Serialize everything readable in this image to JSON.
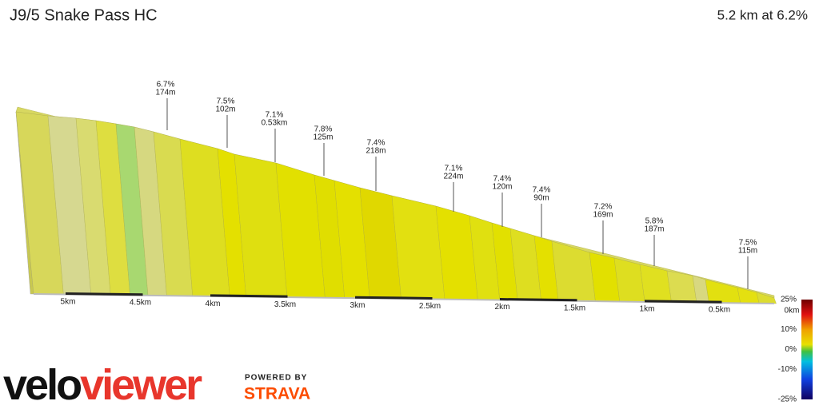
{
  "chart_data": {
    "type": "profile",
    "title": "J9/5 Snake Pass HC",
    "subtitle": "5.2 km at 6.2%",
    "annotations": [
      {
        "grade": "6.7%",
        "length": "174m"
      },
      {
        "grade": "7.5%",
        "length": "102m"
      },
      {
        "grade": "7.1%",
        "length": "0.53km"
      },
      {
        "grade": "7.8%",
        "length": "125m"
      },
      {
        "grade": "7.4%",
        "length": "218m"
      },
      {
        "grade": "7.1%",
        "length": "224m"
      },
      {
        "grade": "7.4%",
        "length": "120m"
      },
      {
        "grade": "7.4%",
        "length": "90m"
      },
      {
        "grade": "7.2%",
        "length": "169m"
      },
      {
        "grade": "5.8%",
        "length": "187m"
      },
      {
        "grade": "7.5%",
        "length": "115m"
      }
    ],
    "xlim": [
      5.2,
      0
    ],
    "xticks": [
      {
        "value": 5,
        "label": "5km"
      },
      {
        "value": 4.5,
        "label": "4.5km"
      },
      {
        "value": 4,
        "label": "4km"
      },
      {
        "value": 3.5,
        "label": "3.5km"
      },
      {
        "value": 3,
        "label": "3km"
      },
      {
        "value": 2.5,
        "label": "2.5km"
      },
      {
        "value": 2,
        "label": "2km"
      },
      {
        "value": 1.5,
        "label": "1.5km"
      },
      {
        "value": 1,
        "label": "1km"
      },
      {
        "value": 0.5,
        "label": "0.5km"
      },
      {
        "value": 0,
        "label": "0km"
      }
    ],
    "colorbar": {
      "lim": [
        -25,
        25
      ],
      "ticks": [
        {
          "value": 25,
          "label": "25%"
        },
        {
          "value": 10,
          "label": "10%"
        },
        {
          "value": 0,
          "label": "0%"
        },
        {
          "value": -10,
          "label": "-10%"
        },
        {
          "value": -25,
          "label": "-25%"
        }
      ]
    },
    "brand": {
      "velo": "velo",
      "viewer": "viewer",
      "powered": "POWERED BY",
      "strava": "STRAVA"
    }
  }
}
